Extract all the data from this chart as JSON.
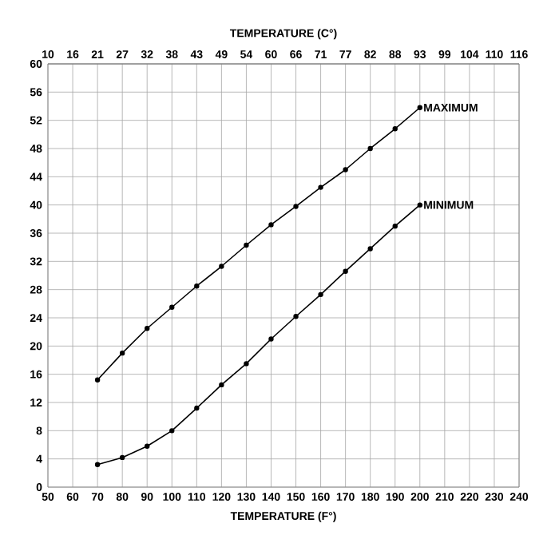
{
  "chart_data": {
    "type": "line",
    "xlabel": "TEMPERATURE (F°)",
    "x2label": "TEMPERATURE (C°)",
    "x": [
      70,
      80,
      90,
      100,
      110,
      120,
      130,
      140,
      150,
      160,
      170,
      180,
      190,
      200
    ],
    "series": [
      {
        "name": "MAXIMUM",
        "color": "#000000",
        "values": [
          15.2,
          19,
          22.5,
          25.5,
          28.5,
          31.3,
          34.3,
          37.2,
          39.8,
          42.5,
          45,
          48,
          50.8,
          53.8
        ]
      },
      {
        "name": "MINIMUM",
        "color": "#000000",
        "values": [
          3.2,
          4.2,
          5.8,
          8,
          11.2,
          14.5,
          17.5,
          21,
          24.2,
          27.3,
          30.6,
          33.8,
          37,
          40
        ]
      }
    ],
    "xlim": [
      50,
      240
    ],
    "xticks": [
      50,
      60,
      70,
      80,
      90,
      100,
      110,
      120,
      130,
      140,
      150,
      160,
      170,
      180,
      190,
      200,
      210,
      220,
      230,
      240
    ],
    "x2lim": [
      10,
      115.56
    ],
    "x2ticks": [
      10,
      {
        "value": 15.56,
        "label": "16"
      },
      {
        "value": 21.11,
        "label": "21"
      },
      {
        "value": 26.67,
        "label": "27"
      },
      {
        "value": 32.22,
        "label": "32"
      },
      {
        "value": 37.78,
        "label": "38"
      },
      {
        "value": 43.33,
        "label": "43"
      },
      {
        "value": 48.89,
        "label": "49"
      },
      {
        "value": 54.44,
        "label": "54"
      },
      60,
      {
        "value": 65.56,
        "label": "66"
      },
      {
        "value": 71.11,
        "label": "71"
      },
      {
        "value": 76.67,
        "label": "77"
      },
      {
        "value": 82.22,
        "label": "82"
      },
      {
        "value": 87.78,
        "label": "88"
      },
      {
        "value": 93.33,
        "label": "93"
      },
      {
        "value": 98.89,
        "label": "99"
      },
      {
        "value": 104.44,
        "label": "104"
      },
      110,
      {
        "value": 115.56,
        "label": "116"
      }
    ],
    "ylim": [
      0,
      60
    ],
    "yticks": [
      0,
      4,
      8,
      12,
      16,
      20,
      24,
      28,
      32,
      36,
      40,
      44,
      48,
      52,
      56,
      60
    ],
    "grid": true,
    "marker": "circle",
    "line_style": "solid"
  }
}
